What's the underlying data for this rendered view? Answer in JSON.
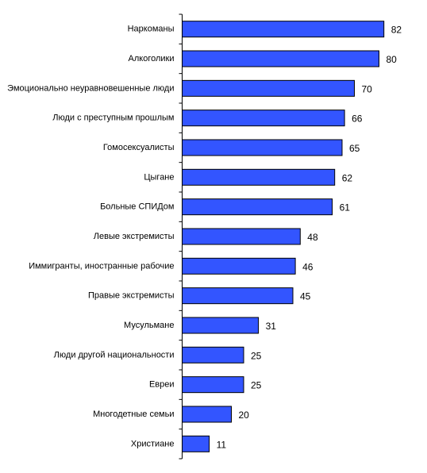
{
  "chart_data": {
    "type": "bar",
    "orientation": "horizontal",
    "categories": [
      "Наркоманы",
      "Алкоголики",
      "Эмоционально неуравновешенные люди",
      "Люди с преступным прошлым",
      "Гомосексуалисты",
      "Цыгане",
      "Больные СПИДом",
      "Левые экстремисты",
      "Иммигранты, иностранные рабочие",
      "Правые экстремисты",
      "Мусульмане",
      "Люди другой национальности",
      "Евреи",
      "Многодетные семьи",
      "Христиане"
    ],
    "values": [
      82,
      80,
      70,
      66,
      65,
      62,
      61,
      48,
      46,
      45,
      31,
      25,
      25,
      20,
      11
    ],
    "xlim": [
      0,
      100
    ],
    "grid": false,
    "legend": "none",
    "bar_color": "#3355FF",
    "bar_border_color": "#000000"
  }
}
